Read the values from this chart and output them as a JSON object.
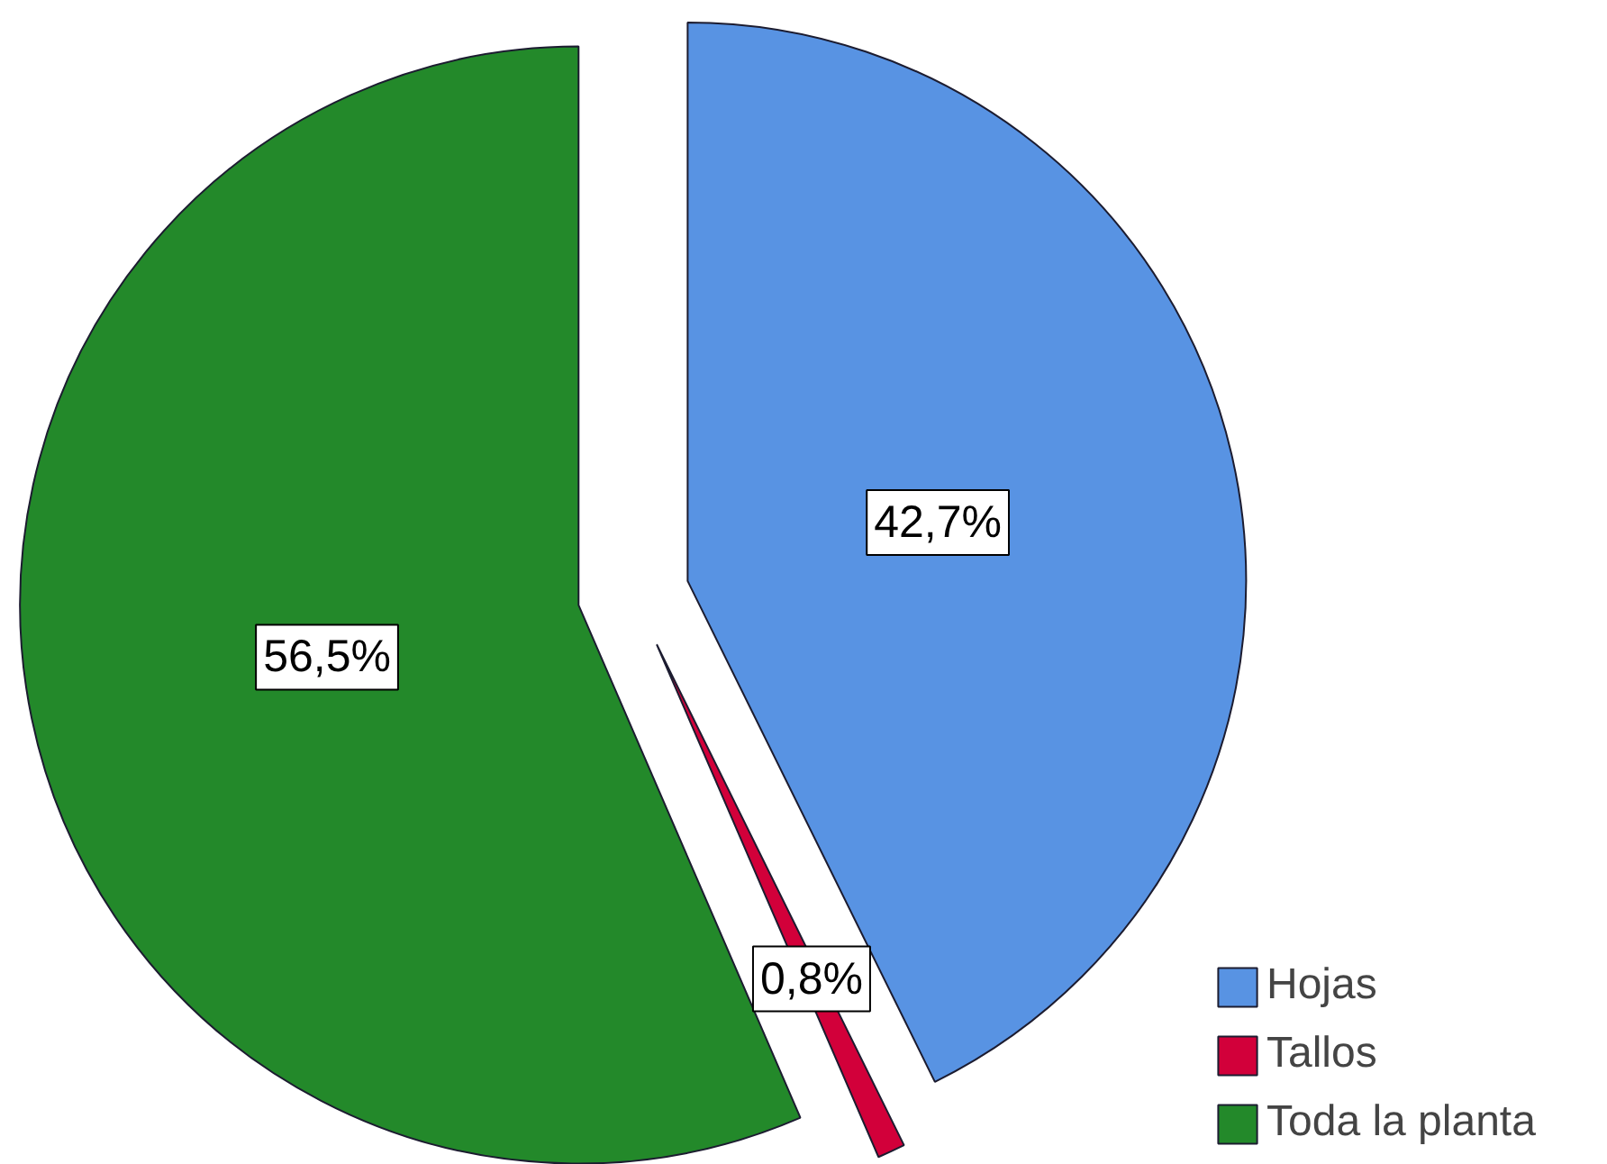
{
  "chart_data": {
    "type": "pie",
    "categories": [
      "Hojas",
      "Tallos",
      "Toda la planta"
    ],
    "values": [
      42.7,
      0.8,
      56.5
    ],
    "colors": [
      "#5893e3",
      "#d2003a",
      "#23892a"
    ],
    "value_labels": [
      "42,7%",
      "0,8%",
      "56,5%"
    ],
    "legend": "bottom right"
  }
}
